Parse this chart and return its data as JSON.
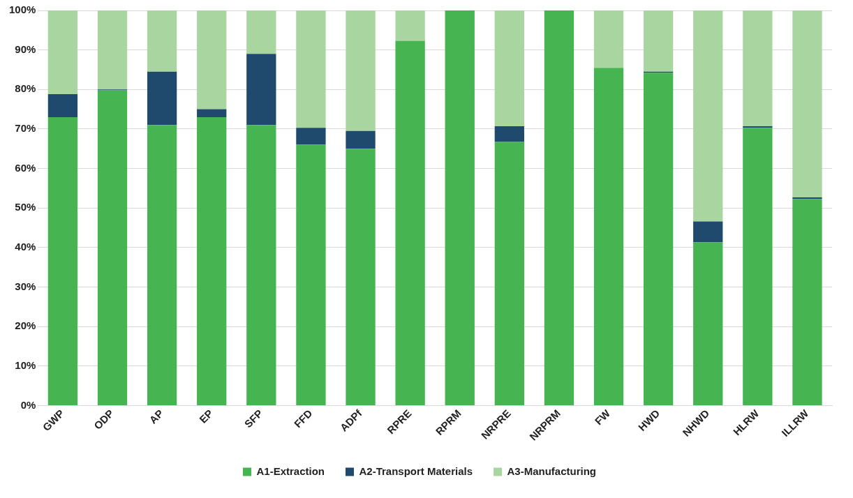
{
  "chart_data": {
    "type": "bar",
    "stacked": true,
    "categories": [
      "GWP",
      "ODP",
      "AP",
      "EP",
      "SFP",
      "FFD",
      "ADPf",
      "RPRE",
      "RPRM",
      "NRPRE",
      "NRPRM",
      "FW",
      "HWD",
      "NHWD",
      "HLRW",
      "ILLRW"
    ],
    "series": [
      {
        "name": "A1-Extraction",
        "color": "#46b450",
        "values": [
          73,
          79.8,
          71,
          73,
          71,
          66,
          65,
          92.3,
          100,
          66.7,
          100,
          85.5,
          84.2,
          41.3,
          70.3,
          52.3
        ]
      },
      {
        "name": "A2-Transport Materials",
        "color": "#1f4a6e",
        "values": [
          5.8,
          0.2,
          13.5,
          2,
          18,
          4.3,
          4.5,
          0,
          0,
          4,
          0,
          0,
          0.3,
          5.3,
          0.4,
          0.4
        ]
      },
      {
        "name": "A3-Manufacturing",
        "color": "#a9d5a0",
        "values": [
          21.2,
          20,
          15.5,
          25,
          11,
          29.7,
          30.5,
          7.7,
          0,
          29.3,
          0,
          14.5,
          15.5,
          53.4,
          29.3,
          47.3
        ]
      }
    ],
    "ylim": [
      0,
      100
    ],
    "yticks": [
      {
        "value": 0,
        "label": "0%"
      },
      {
        "value": 10,
        "label": "10%"
      },
      {
        "value": 20,
        "label": "20%"
      },
      {
        "value": 30,
        "label": "30%"
      },
      {
        "value": 40,
        "label": "40%"
      },
      {
        "value": 50,
        "label": "50%"
      },
      {
        "value": 60,
        "label": "60%"
      },
      {
        "value": 70,
        "label": "70%"
      },
      {
        "value": 80,
        "label": "80%"
      },
      {
        "value": 90,
        "label": "90%"
      },
      {
        "value": 100,
        "label": "100%"
      }
    ],
    "grid": "y",
    "legend": "bottom"
  }
}
